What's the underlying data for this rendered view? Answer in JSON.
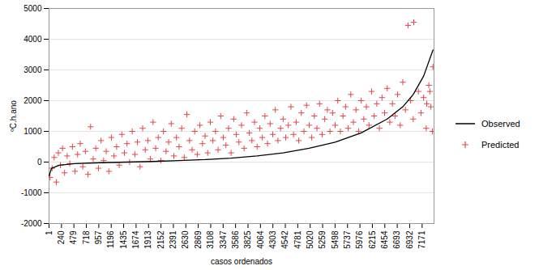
{
  "chart_data": {
    "type": "scatter",
    "x_label": "casos ordenados",
    "y_label": "ºC.h.ano",
    "xlim": [
      1,
      7400
    ],
    "xticks": [
      1,
      240,
      479,
      718,
      957,
      1196,
      1435,
      1674,
      1913,
      2152,
      2391,
      2630,
      2869,
      3108,
      3347,
      3586,
      3825,
      4064,
      4303,
      4542,
      4781,
      5020,
      5259,
      5498,
      5737,
      5976,
      6215,
      6454,
      6693,
      6932,
      7171
    ],
    "ylim": [
      -2000,
      5000
    ],
    "yticks": [
      -2000,
      -1000,
      0,
      1000,
      2000,
      3000,
      4000,
      5000
    ],
    "grid": true,
    "legend": "right",
    "series": [
      {
        "name": "Observed",
        "type": "line",
        "color": "#000000",
        "line_style": "solid",
        "x": [
          1,
          50,
          200,
          500,
          1000,
          1500,
          2000,
          2500,
          3000,
          3500,
          4000,
          4500,
          5000,
          5500,
          6000,
          6500,
          6800,
          7000,
          7200,
          7380
        ],
        "values": [
          -450,
          -200,
          -100,
          -50,
          -20,
          0,
          20,
          50,
          80,
          130,
          200,
          300,
          450,
          650,
          950,
          1400,
          1800,
          2200,
          2800,
          3650
        ]
      },
      {
        "name": "Predicted",
        "type": "scatter",
        "color": "#e0474c",
        "marker": "plus",
        "x": [
          20,
          60,
          100,
          140,
          180,
          220,
          260,
          300,
          350,
          400,
          450,
          500,
          550,
          600,
          650,
          700,
          750,
          800,
          850,
          900,
          950,
          1000,
          1050,
          1100,
          1150,
          1200,
          1250,
          1300,
          1350,
          1400,
          1450,
          1500,
          1550,
          1600,
          1650,
          1700,
          1750,
          1800,
          1850,
          1900,
          1950,
          2000,
          2050,
          2100,
          2150,
          2200,
          2250,
          2300,
          2350,
          2400,
          2450,
          2500,
          2550,
          2600,
          2650,
          2700,
          2750,
          2800,
          2850,
          2900,
          2950,
          3000,
          3050,
          3100,
          3150,
          3200,
          3250,
          3300,
          3350,
          3400,
          3450,
          3500,
          3550,
          3600,
          3650,
          3700,
          3750,
          3800,
          3850,
          3900,
          3950,
          4000,
          4050,
          4100,
          4150,
          4200,
          4250,
          4300,
          4350,
          4400,
          4450,
          4500,
          4550,
          4600,
          4650,
          4700,
          4750,
          4800,
          4850,
          4900,
          4950,
          5000,
          5050,
          5100,
          5150,
          5200,
          5250,
          5300,
          5350,
          5400,
          5450,
          5500,
          5550,
          5600,
          5650,
          5700,
          5750,
          5800,
          5850,
          5900,
          5950,
          6000,
          6050,
          6100,
          6150,
          6200,
          6250,
          6300,
          6350,
          6400,
          6450,
          6500,
          6550,
          6600,
          6650,
          6700,
          6750,
          6800,
          6850,
          6900,
          6950,
          7000,
          7010,
          7100,
          7150,
          7200,
          7250,
          7300,
          7340,
          7380,
          7370,
          7320,
          7260
        ],
        "values": [
          -500,
          -200,
          150,
          -650,
          300,
          -100,
          450,
          -350,
          200,
          -50,
          500,
          -300,
          250,
          600,
          -150,
          350,
          -400,
          1150,
          100,
          450,
          -200,
          700,
          50,
          350,
          -300,
          800,
          200,
          500,
          -100,
          900,
          300,
          600,
          0,
          1000,
          250,
          650,
          -150,
          1100,
          400,
          700,
          100,
          1300,
          450,
          800,
          50,
          1000,
          350,
          650,
          1250,
          200,
          800,
          500,
          1100,
          150,
          1550,
          700,
          400,
          1000,
          250,
          1200,
          600,
          850,
          300,
          1300,
          700,
          1000,
          400,
          1500,
          800,
          550,
          1100,
          300,
          1400,
          900,
          650,
          1200,
          450,
          1600,
          950,
          700,
          1300,
          500,
          1100,
          800,
          1500,
          600,
          1250,
          900,
          1700,
          700,
          1100,
          1400,
          800,
          1200,
          1800,
          900,
          1300,
          700,
          1600,
          1000,
          1850,
          1200,
          800,
          1500,
          1100,
          1900,
          900,
          1400,
          1700,
          1000,
          1600,
          1200,
          2000,
          1000,
          1500,
          1800,
          1100,
          2200,
          1300,
          1700,
          1000,
          2000,
          1400,
          1800,
          1200,
          2300,
          1500,
          1900,
          1100,
          2100,
          1600,
          2400,
          1300,
          1900,
          1500,
          2200,
          1200,
          2600,
          1700,
          4450,
          2000,
          1400,
          4550,
          2300,
          1600,
          2100,
          1100,
          2500,
          1800,
          3100,
          1000,
          2300,
          1900
        ]
      }
    ]
  }
}
